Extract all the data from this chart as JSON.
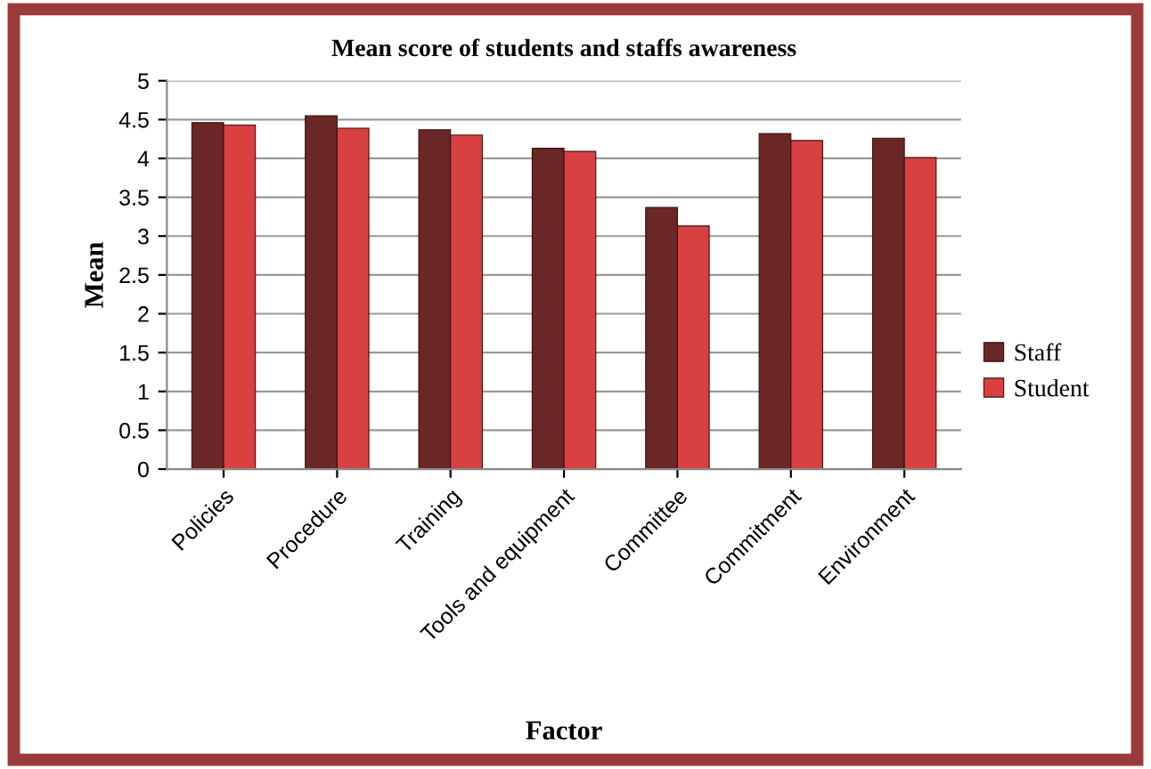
{
  "chart_data": {
    "type": "bar",
    "title": "Mean score of students and staffs awareness",
    "xlabel": "Factor",
    "ylabel": "Mean",
    "categories": [
      "Policies",
      "Procedure",
      "Training",
      "Tools and equipment",
      "Committee",
      "Commitment",
      "Environment"
    ],
    "series": [
      {
        "name": "Staff",
        "color": "#6b2626",
        "values": [
          4.46,
          4.55,
          4.37,
          4.13,
          3.37,
          4.32,
          4.26
        ]
      },
      {
        "name": "Student",
        "color": "#d94040",
        "values": [
          4.43,
          4.39,
          4.3,
          4.09,
          3.13,
          4.23,
          4.01
        ]
      }
    ],
    "ylim": [
      0,
      5
    ],
    "yticks": [
      0,
      0.5,
      1,
      1.5,
      2,
      2.5,
      3,
      3.5,
      4,
      4.5,
      5
    ],
    "grid": "y",
    "legend": "right"
  }
}
